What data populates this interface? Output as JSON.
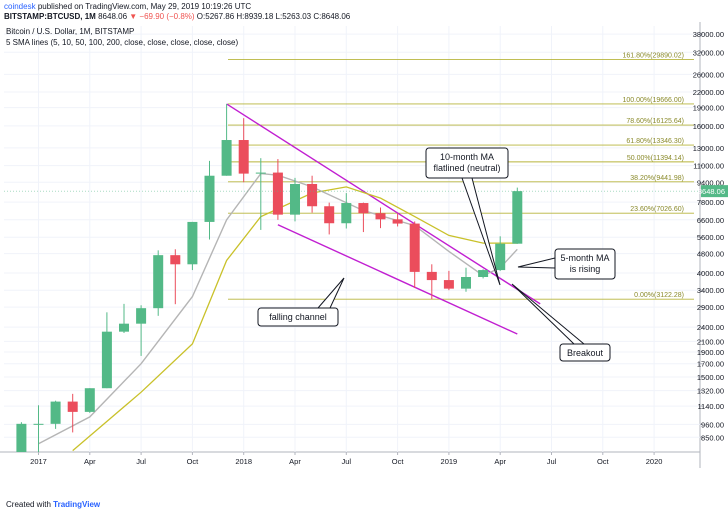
{
  "header": {
    "author": "coindesk",
    "published": "published on TradingView.com, May 29, 2019 10:19:26 UTC",
    "symbol": "BITSTAMP:BTCUSD, 1M",
    "last": "8648.06",
    "change": "−69.90 (−0.8%)",
    "ohlc": "O:5267.86 H:8939.18 L:5263.03 C:8648.06"
  },
  "footer": {
    "created_with": "Created with",
    "brand": "TradingView"
  },
  "chart_data": {
    "type": "candlestick",
    "title": "Bitcoin / U.S. Dollar, 1M, BITSTAMP",
    "subtitle": "5 SMA lines (5, 10, 50, 100, 200, close, close, close, close, close)",
    "y_scale": "log",
    "ylim": [
      740,
      41000
    ],
    "y_ticks": [
      850,
      960,
      1140,
      1320,
      1500,
      1700,
      1900,
      2100,
      2400,
      2900,
      3400,
      4000,
      4800,
      5600,
      6600,
      7800,
      9400,
      11000,
      13000,
      16000,
      19000,
      22000,
      26000,
      32000,
      38000
    ],
    "y_tick_labels": [
      "850.00",
      "960.00",
      "1140.00",
      "1320.00",
      "1500.00",
      "1700.00",
      "1900.00",
      "2100.00",
      "2400.00",
      "2900.00",
      "3400.00",
      "4000.00",
      "4800.00",
      "5600.00",
      "6600.00",
      "7800.00",
      "9400.00",
      "11000.00",
      "13000.00",
      "16000.00",
      "19000.00",
      "22000.00",
      "26000.00",
      "32000.00",
      "38000.00"
    ],
    "x_ticks": [
      "2017",
      "Apr",
      "Jul",
      "Oct",
      "2018",
      "Apr",
      "Jul",
      "Oct",
      "2019",
      "Apr",
      "Jul",
      "Oct",
      "2020"
    ],
    "price_label": "8648.06",
    "candles": [
      {
        "m": "2016-12",
        "o": 740,
        "h": 980,
        "l": 740,
        "c": 965
      },
      {
        "m": "2017-01",
        "o": 965,
        "h": 1150,
        "l": 740,
        "c": 965
      },
      {
        "m": "2017-02",
        "o": 965,
        "h": 1200,
        "l": 920,
        "c": 1190
      },
      {
        "m": "2017-03",
        "o": 1190,
        "h": 1280,
        "l": 890,
        "c": 1080
      },
      {
        "m": "2017-04",
        "o": 1080,
        "h": 1350,
        "l": 1070,
        "c": 1350
      },
      {
        "m": "2017-05",
        "o": 1350,
        "h": 2760,
        "l": 1350,
        "c": 2300
      },
      {
        "m": "2017-06",
        "o": 2300,
        "h": 2990,
        "l": 2270,
        "c": 2480
      },
      {
        "m": "2017-07",
        "o": 2480,
        "h": 2950,
        "l": 1830,
        "c": 2870
      },
      {
        "m": "2017-08",
        "o": 2870,
        "h": 4950,
        "l": 2670,
        "c": 4730
      },
      {
        "m": "2017-09",
        "o": 4730,
        "h": 5000,
        "l": 2980,
        "c": 4340
      },
      {
        "m": "2017-10",
        "o": 4340,
        "h": 6470,
        "l": 4110,
        "c": 6470
      },
      {
        "m": "2017-11",
        "o": 6470,
        "h": 11500,
        "l": 5480,
        "c": 10000
      },
      {
        "m": "2017-12",
        "o": 10000,
        "h": 19666,
        "l": 10000,
        "c": 14000
      },
      {
        "m": "2018-01",
        "o": 14000,
        "h": 17200,
        "l": 9400,
        "c": 10200
      },
      {
        "m": "2018-02",
        "o": 10200,
        "h": 11800,
        "l": 6000,
        "c": 10300
      },
      {
        "m": "2018-03",
        "o": 10300,
        "h": 11700,
        "l": 6600,
        "c": 6930
      },
      {
        "m": "2018-04",
        "o": 6930,
        "h": 9800,
        "l": 6500,
        "c": 9250
      },
      {
        "m": "2018-05",
        "o": 9250,
        "h": 10000,
        "l": 7060,
        "c": 7500
      },
      {
        "m": "2018-06",
        "o": 7500,
        "h": 7760,
        "l": 5750,
        "c": 6390
      },
      {
        "m": "2018-07",
        "o": 6390,
        "h": 8490,
        "l": 6080,
        "c": 7730
      },
      {
        "m": "2018-08",
        "o": 7730,
        "h": 7760,
        "l": 5880,
        "c": 7020
      },
      {
        "m": "2018-09",
        "o": 7020,
        "h": 7410,
        "l": 6100,
        "c": 6630
      },
      {
        "m": "2018-10",
        "o": 6630,
        "h": 7000,
        "l": 6200,
        "c": 6370
      },
      {
        "m": "2018-11",
        "o": 6370,
        "h": 6500,
        "l": 3470,
        "c": 4040
      },
      {
        "m": "2018-12",
        "o": 4040,
        "h": 4340,
        "l": 3122,
        "c": 3740
      },
      {
        "m": "2019-01",
        "o": 3740,
        "h": 4080,
        "l": 3400,
        "c": 3450
      },
      {
        "m": "2019-02",
        "o": 3450,
        "h": 4200,
        "l": 3350,
        "c": 3850
      },
      {
        "m": "2019-03",
        "o": 3850,
        "h": 4140,
        "l": 3800,
        "c": 4110
      },
      {
        "m": "2019-04",
        "o": 4110,
        "h": 5650,
        "l": 4080,
        "c": 5270
      },
      {
        "m": "2019-05",
        "o": 5270,
        "h": 8939.18,
        "l": 5263.03,
        "c": 8648.06
      }
    ],
    "sma_5": [
      {
        "m": "2017-01",
        "v": 800
      },
      {
        "m": "2017-04",
        "v": 1030
      },
      {
        "m": "2017-07",
        "v": 1700
      },
      {
        "m": "2017-10",
        "v": 3200
      },
      {
        "m": "2017-12",
        "v": 6600
      },
      {
        "m": "2018-02",
        "v": 10200
      },
      {
        "m": "2018-03",
        "v": 10050
      },
      {
        "m": "2018-05",
        "v": 9000
      },
      {
        "m": "2018-08",
        "v": 7200
      },
      {
        "m": "2018-11",
        "v": 6250
      },
      {
        "m": "2019-01",
        "v": 4900
      },
      {
        "m": "2019-03",
        "v": 3900
      },
      {
        "m": "2019-04",
        "v": 4200
      },
      {
        "m": "2019-05",
        "v": 5000
      }
    ],
    "sma_10": [
      {
        "m": "2017-03",
        "v": 750
      },
      {
        "m": "2017-07",
        "v": 1300
      },
      {
        "m": "2017-10",
        "v": 2050
      },
      {
        "m": "2017-12",
        "v": 4500
      },
      {
        "m": "2018-02",
        "v": 6800
      },
      {
        "m": "2018-05",
        "v": 8500
      },
      {
        "m": "2018-07",
        "v": 9000
      },
      {
        "m": "2018-09",
        "v": 8100
      },
      {
        "m": "2018-11",
        "v": 6800
      },
      {
        "m": "2019-01",
        "v": 5700
      },
      {
        "m": "2019-03",
        "v": 5300
      },
      {
        "m": "2019-05",
        "v": 5300
      }
    ],
    "fibs": [
      {
        "label": "161.80%(29890.02)",
        "value": 29890.02
      },
      {
        "label": "100.00%(19666.00)",
        "value": 19666
      },
      {
        "label": "78.60%(16125.64)",
        "value": 16125.64
      },
      {
        "label": "61.80%(13346.30)",
        "value": 13346.3
      },
      {
        "label": "50.00%(11394.14)",
        "value": 11394.14
      },
      {
        "label": "38.20%(9441.98)",
        "value": 9441.98
      },
      {
        "label": "23.60%(7026.60)",
        "value": 7026.6
      },
      {
        "label": "0.00%(3122.28)",
        "value": 3122.28
      }
    ],
    "channel_upper": [
      {
        "m": "2017-12",
        "v": 19666
      },
      {
        "m": "2019-04",
        "v": 4040
      }
    ],
    "channel_lower": [
      {
        "m": "2018-03",
        "v": 6300
      },
      {
        "m": "2019-05",
        "v": 2250
      }
    ],
    "annotations": [
      {
        "text": "10-month MA\nflatlined (neutral)"
      },
      {
        "text": "falling channel"
      },
      {
        "text": "5-month MA\nis rising"
      },
      {
        "text": "Breakout"
      }
    ]
  }
}
